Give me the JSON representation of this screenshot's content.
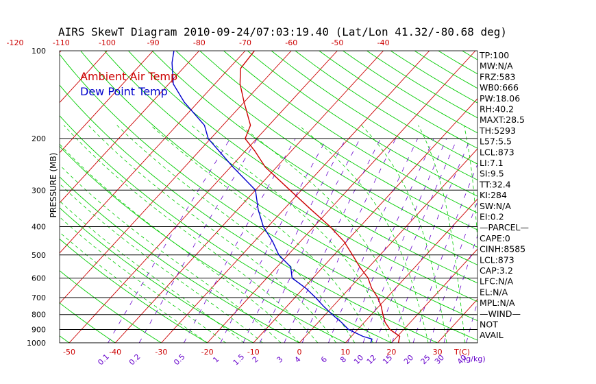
{
  "title": "AIRS SkewT Diagram 2010-09-24/07:03:19.40 (Lat/Lon 41.32/-80.68 deg)",
  "colors": {
    "temp": "#cc0000",
    "dewpoint": "#0000cc",
    "isotherm": "#cc0000",
    "adiabat": "#00cc00",
    "moist_adiabat": "#00cc00",
    "mixing_ratio": "#6600cc",
    "isobar": "#000000",
    "axis_text_red": "#cc0000",
    "axis_text_purple": "#6600cc"
  },
  "chart_data": {
    "type": "line",
    "ylabel": "PRESSURE (MB)",
    "y_scale": "log",
    "ylim": [
      1000,
      100
    ],
    "pressure_levels": [
      100,
      200,
      300,
      400,
      500,
      600,
      700,
      800,
      900,
      1000
    ],
    "top_temp_ticks": [
      -120,
      -110,
      -100,
      -90,
      -80,
      -70,
      -60,
      -50,
      -40
    ],
    "bottom_temp_ticks": [
      -50,
      -40,
      -30,
      -20,
      -10,
      0,
      10,
      20,
      30
    ],
    "bottom_temp_label": "T(C)",
    "mixing_ratio_ticks": [
      "0.1",
      "0.2",
      "0.5",
      "1",
      "1.5",
      "2",
      "3",
      "4",
      "6",
      "8",
      "10",
      "12",
      "15",
      "20",
      "25",
      "30",
      "40"
    ],
    "mixing_ratio_label": "(g/kg)",
    "legend": [
      {
        "name": "Ambient Air Temp",
        "color": "#cc0000"
      },
      {
        "name": "Dew Point Temp",
        "color": "#0000cc"
      }
    ],
    "series": [
      {
        "name": "Ambient Air Temp",
        "points": [
          {
            "p": 1000,
            "t": 21.5
          },
          {
            "p": 950,
            "t": 20.5
          },
          {
            "p": 900,
            "t": 17.0
          },
          {
            "p": 850,
            "t": 14.5
          },
          {
            "p": 800,
            "t": 12.5
          },
          {
            "p": 750,
            "t": 10.5
          },
          {
            "p": 700,
            "t": 8.0
          },
          {
            "p": 650,
            "t": 4.8
          },
          {
            "p": 600,
            "t": 2.0
          },
          {
            "p": 550,
            "t": -2.0
          },
          {
            "p": 500,
            "t": -6.0
          },
          {
            "p": 450,
            "t": -10.5
          },
          {
            "p": 400,
            "t": -16.5
          },
          {
            "p": 350,
            "t": -24.0
          },
          {
            "p": 300,
            "t": -32.5
          },
          {
            "p": 250,
            "t": -42.5
          },
          {
            "p": 220,
            "t": -48.0
          },
          {
            "p": 200,
            "t": -52.5
          },
          {
            "p": 180,
            "t": -54.0
          },
          {
            "p": 150,
            "t": -60.0
          },
          {
            "p": 130,
            "t": -64.5
          },
          {
            "p": 115,
            "t": -67.5
          },
          {
            "p": 100,
            "t": -68.0
          }
        ]
      },
      {
        "name": "Dew Point Temp",
        "points": [
          {
            "p": 1000,
            "t": 15.5
          },
          {
            "p": 970,
            "t": 15.0
          },
          {
            "p": 950,
            "t": 12.5
          },
          {
            "p": 900,
            "t": 8.0
          },
          {
            "p": 850,
            "t": 5.0
          },
          {
            "p": 800,
            "t": 1.5
          },
          {
            "p": 750,
            "t": -2.0
          },
          {
            "p": 700,
            "t": -5.5
          },
          {
            "p": 650,
            "t": -9.5
          },
          {
            "p": 600,
            "t": -14.5
          },
          {
            "p": 550,
            "t": -17.0
          },
          {
            "p": 500,
            "t": -22.0
          },
          {
            "p": 450,
            "t": -26.0
          },
          {
            "p": 400,
            "t": -31.0
          },
          {
            "p": 350,
            "t": -35.5
          },
          {
            "p": 300,
            "t": -40.0
          },
          {
            "p": 250,
            "t": -49.5
          },
          {
            "p": 200,
            "t": -60.5
          },
          {
            "p": 180,
            "t": -64.0
          },
          {
            "p": 150,
            "t": -73.0
          },
          {
            "p": 130,
            "t": -79.0
          },
          {
            "p": 110,
            "t": -83.5
          },
          {
            "p": 100,
            "t": -85.5
          }
        ]
      }
    ]
  },
  "indices": [
    "TP:100",
    "MW:N/A",
    "FRZ:583",
    "WB0:666",
    "PW:18.06",
    "RH:40.2",
    "MAXT:28.5",
    "TH:5293",
    "L57:5.5",
    "LCL:873",
    "LI:7.1",
    "SI:9.5",
    "TT:32.4",
    "KI:284",
    "SW:N/A",
    "EI:0.2",
    "—PARCEL—",
    "CAPE:0",
    "CINH:8585",
    "LCL:873",
    "CAP:3.2",
    "LFC:N/A",
    "EL:N/A",
    "MPL:N/A",
    "—WIND—",
    "NOT",
    "AVAIL"
  ]
}
